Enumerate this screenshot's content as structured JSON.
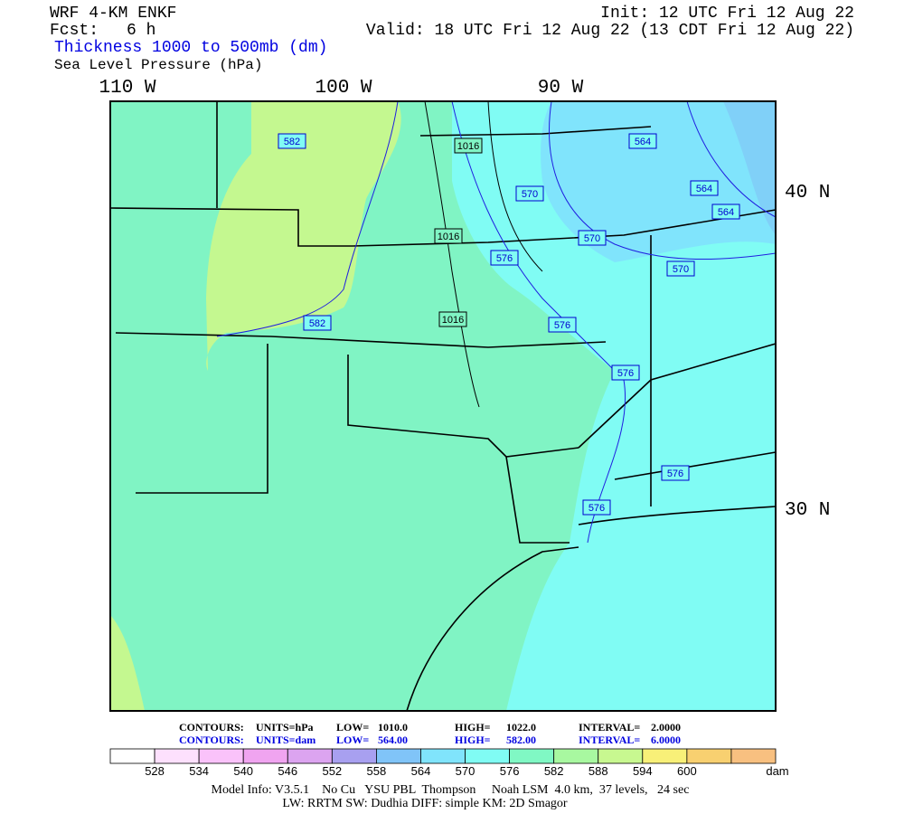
{
  "header": {
    "model": "WRF 4-KM ENKF",
    "forecast_label": "Fcst:",
    "forecast_hours": "6 h",
    "init": "Init: 12 UTC Fri 12 Aug 22",
    "valid": "Valid: 18 UTC Fri 12 Aug 22 (13 CDT Fri 12 Aug 22)",
    "field1": "Thickness 1000 to 500mb (dm)",
    "field2": "Sea Level Pressure (hPa)"
  },
  "map": {
    "longitude_labels": [
      "110 W",
      "100 W",
      "90 W"
    ],
    "latitude_labels": [
      "40 N",
      "30 N"
    ],
    "thickness_labels": [
      "582",
      "582",
      "570",
      "570",
      "570",
      "564",
      "564",
      "564",
      "576",
      "576",
      "576",
      "576",
      "576"
    ],
    "pressure_labels": [
      "1016",
      "1016",
      "1016"
    ]
  },
  "contour_info": [
    {
      "contours": "CONTOURS:",
      "units": "UNITS=hPa",
      "low": "LOW=",
      "low_value": "1010.0",
      "high": "HIGH=",
      "high_value": "1022.0",
      "interval": "INTERVAL=",
      "interval_value": "2.0000"
    },
    {
      "contours": "CONTOURS:",
      "units": "UNITS=dam",
      "low": "LOW=",
      "low_value": "564.00",
      "high": "HIGH=",
      "high_value": "582.00",
      "interval": "INTERVAL=",
      "interval_value": "6.0000"
    }
  ],
  "colorbar": {
    "colors": [
      "#ffffff",
      "#fde0fd",
      "#fac2fa",
      "#f0a4f0",
      "#dca4f0",
      "#a8a0f0",
      "#80c4f8",
      "#80e4fc",
      "#80fcf4",
      "#80f8c4",
      "#a8f8a0",
      "#c8f890",
      "#f8f078",
      "#f8d070",
      "#f8c080"
    ],
    "labels": [
      "528",
      "534",
      "540",
      "546",
      "552",
      "558",
      "564",
      "570",
      "576",
      "582",
      "588",
      "594",
      "600"
    ],
    "unit": "dam"
  },
  "footer": [
    "Model Info: V3.5.1    No Cu   YSU PBL  Thompson     Noah LSM  4.0 km,  37 levels,   24 sec",
    "LW: RRTM SW: Dudhia  DIFF: simple KM: 2D Smagor"
  ]
}
